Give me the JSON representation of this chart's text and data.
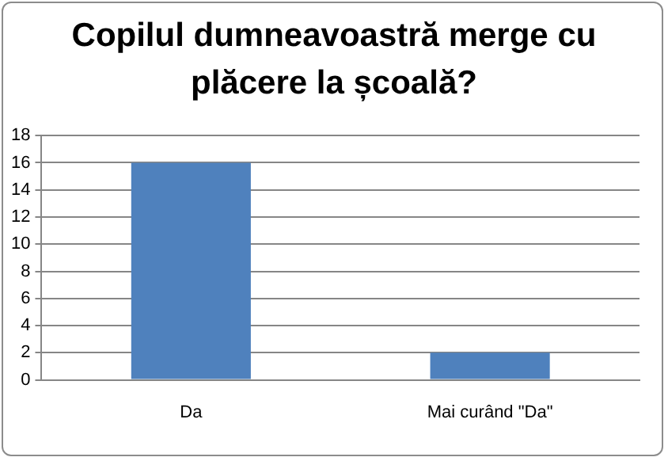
{
  "chart_data": {
    "type": "bar",
    "title": "Copilul dumneavoastră merge cu plăcere la școală?",
    "categories": [
      "Da",
      "Mai curând \"Da\""
    ],
    "values": [
      16,
      2
    ],
    "color": "#4f81bd",
    "ylim": [
      0,
      18
    ],
    "yticks": [
      0,
      2,
      4,
      6,
      8,
      10,
      12,
      14,
      16,
      18
    ],
    "grid": "y"
  }
}
